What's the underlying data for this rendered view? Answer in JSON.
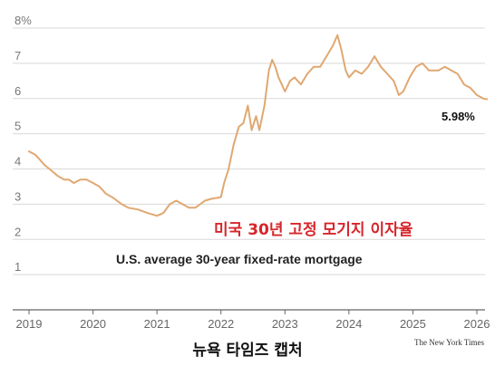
{
  "chart_data": {
    "type": "line",
    "title": "",
    "xlabel": "",
    "ylabel": "",
    "xlim": [
      2019.0,
      2026.3
    ],
    "ylim": [
      0,
      8
    ],
    "y_ticks": [
      {
        "value": 8,
        "label": "8%"
      },
      {
        "value": 7,
        "label": "7"
      },
      {
        "value": 6,
        "label": "6"
      },
      {
        "value": 5,
        "label": "5"
      },
      {
        "value": 4,
        "label": "4"
      },
      {
        "value": 3,
        "label": "3"
      },
      {
        "value": 2,
        "label": "2"
      },
      {
        "value": 1,
        "label": "1"
      }
    ],
    "x_ticks": [
      {
        "value": 2019,
        "label": "2019"
      },
      {
        "value": 2020,
        "label": "2020"
      },
      {
        "value": 2021,
        "label": "2021"
      },
      {
        "value": 2022,
        "label": "2022"
      },
      {
        "value": 2023,
        "label": "2023"
      },
      {
        "value": 2024,
        "label": "2024"
      },
      {
        "value": 2025,
        "label": "2025"
      },
      {
        "value": 2026,
        "label": "2026"
      }
    ],
    "grid": "horizontal",
    "line_color": "#e0a872",
    "series": [
      {
        "x": [
          2019.0,
          2019.1,
          2019.15,
          2019.25,
          2019.32,
          2019.45,
          2019.55,
          2019.62,
          2019.7,
          2019.8,
          2019.9,
          2020.0,
          2020.1,
          2020.2,
          2020.3,
          2020.45,
          2020.55,
          2020.7,
          2020.85,
          2021.0,
          2021.1,
          2021.2,
          2021.3,
          2021.4,
          2021.5,
          2021.6,
          2021.75,
          2021.85,
          2022.0,
          2022.05,
          2022.12,
          2022.2,
          2022.28,
          2022.35,
          2022.42,
          2022.48,
          2022.55,
          2022.6,
          2022.68,
          2022.75,
          2022.8,
          2022.85,
          2022.9,
          2022.95,
          2023.0,
          2023.08,
          2023.15,
          2023.25,
          2023.35,
          2023.45,
          2023.55,
          2023.65,
          2023.75,
          2023.82,
          2023.88,
          2023.95,
          2024.0,
          2024.1,
          2024.2,
          2024.3,
          2024.4,
          2024.5,
          2024.6,
          2024.7,
          2024.78,
          2024.85,
          2024.95,
          2025.05,
          2025.15,
          2025.25,
          2025.4,
          2025.5,
          2025.6,
          2025.7,
          2025.8,
          2025.9,
          2026.0,
          2026.1,
          2026.16
        ],
        "values": [
          4.5,
          4.4,
          4.3,
          4.1,
          4.0,
          3.8,
          3.7,
          3.7,
          3.6,
          3.7,
          3.7,
          3.6,
          3.5,
          3.3,
          3.2,
          3.0,
          2.9,
          2.85,
          2.75,
          2.67,
          2.75,
          3.0,
          3.1,
          3.0,
          2.9,
          2.9,
          3.1,
          3.15,
          3.2,
          3.6,
          4.0,
          4.7,
          5.2,
          5.3,
          5.8,
          5.1,
          5.5,
          5.1,
          5.8,
          6.8,
          7.1,
          6.9,
          6.6,
          6.4,
          6.2,
          6.5,
          6.6,
          6.4,
          6.7,
          6.9,
          6.9,
          7.2,
          7.5,
          7.8,
          7.4,
          6.8,
          6.6,
          6.8,
          6.7,
          6.9,
          7.2,
          6.9,
          6.7,
          6.5,
          6.1,
          6.2,
          6.6,
          6.9,
          7.0,
          6.8,
          6.8,
          6.9,
          6.8,
          6.7,
          6.4,
          6.3,
          6.1,
          6.0,
          5.98
        ]
      }
    ],
    "end_label": "5.98%",
    "annotations": {
      "korean": "미국 30년 고정 모기지 이자율",
      "english": "U.S. average 30-year fixed-rate mortgage"
    }
  },
  "footer": {
    "caption": "뉴욕 타임즈 캡처",
    "source": "The New York Times"
  }
}
